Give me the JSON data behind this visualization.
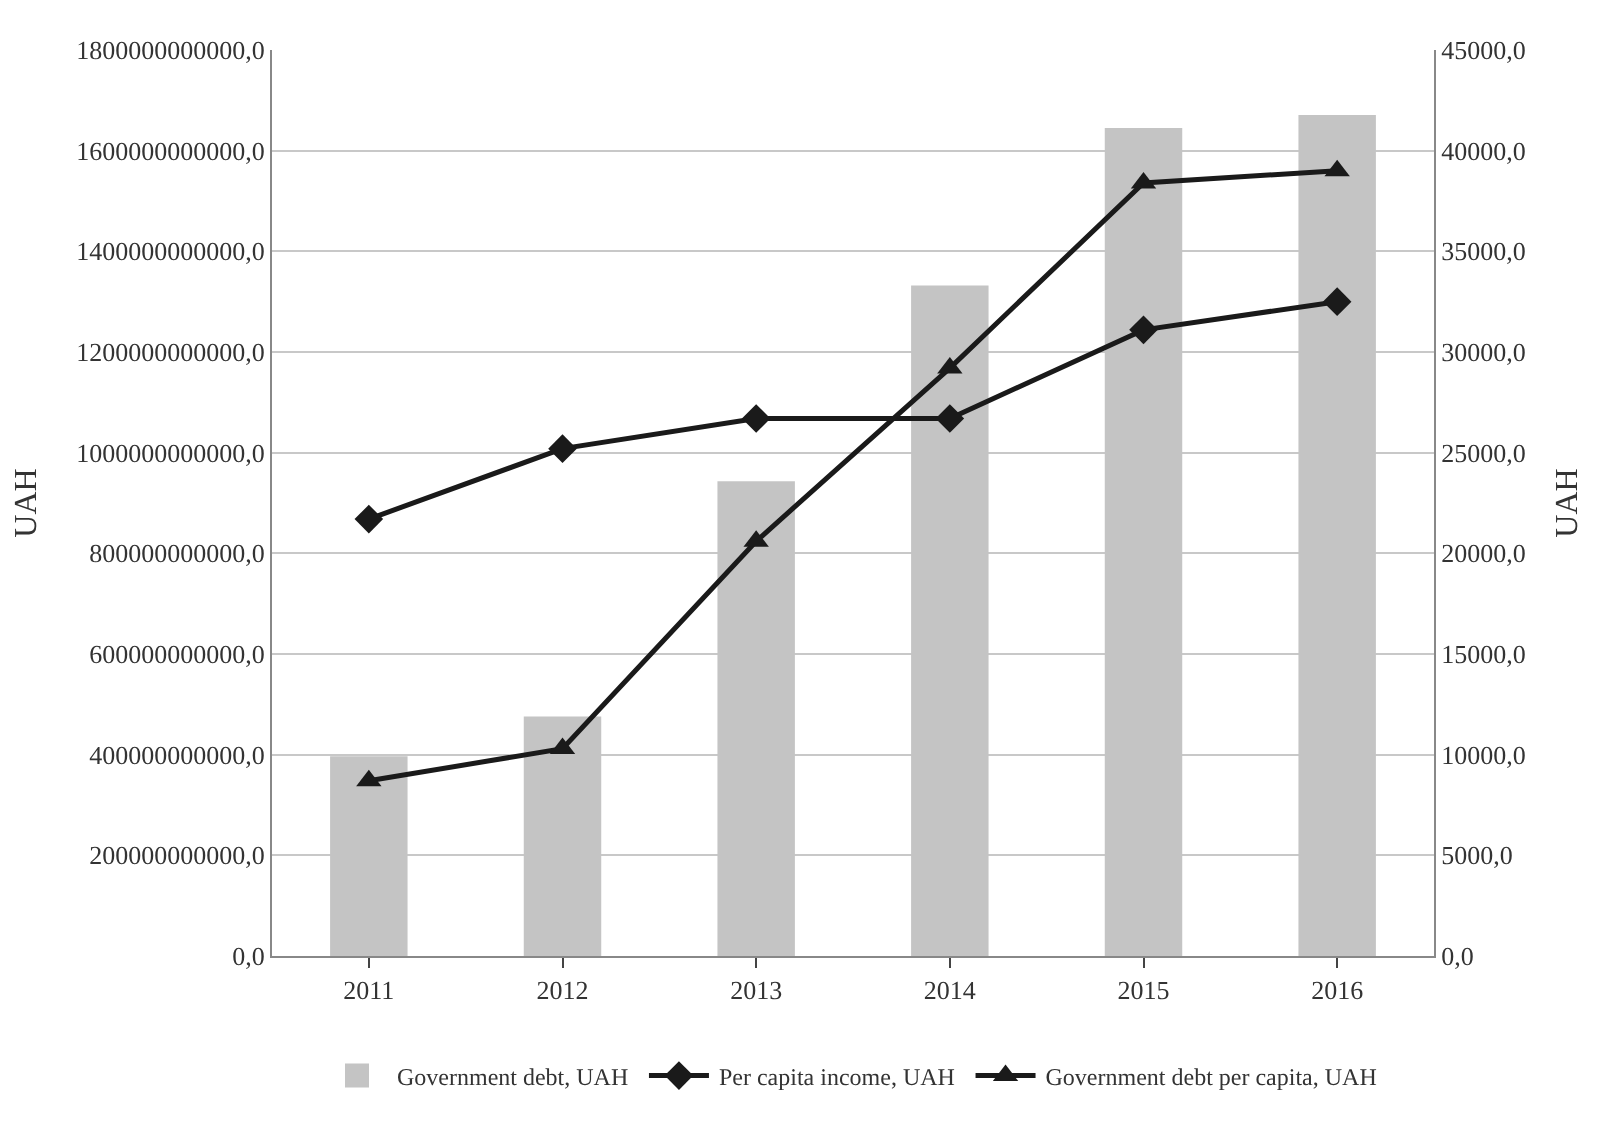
{
  "chart_data": {
    "type": "bar",
    "categories": [
      "2011",
      "2012",
      "2013",
      "2014",
      "2015",
      "2016"
    ],
    "ylabel": "UAH",
    "y2label": "UAH",
    "series": [
      {
        "name": "Government debt, UAH",
        "color": "#c4c4c4",
        "values": [
          397000000000,
          476000000000,
          943000000000,
          1332000000000,
          1645000000000,
          1671000000000
        ]
      },
      {
        "name": "Per capita income, UAH",
        "type": "line",
        "axis": "y2",
        "marker": "diamond",
        "color": "#1a1a1a",
        "values": [
          21700,
          25200,
          26700,
          26700,
          31100,
          32500
        ]
      },
      {
        "name": "Government debt per capita, UAH",
        "type": "line",
        "axis": "y2",
        "marker": "triangle",
        "color": "#1a1a1a",
        "values": [
          8700,
          10300,
          20600,
          29200,
          38400,
          39000
        ]
      }
    ],
    "ylim": [
      0,
      1800000000000
    ],
    "yticks": [
      {
        "value": 0,
        "label": "0,0"
      },
      {
        "value": 200000000000,
        "label": "200000000000,0"
      },
      {
        "value": 400000000000,
        "label": "400000000000,0"
      },
      {
        "value": 600000000000,
        "label": "600000000000,0"
      },
      {
        "value": 800000000000,
        "label": "800000000000,0"
      },
      {
        "value": 1000000000000,
        "label": "1000000000000,0"
      },
      {
        "value": 1200000000000,
        "label": "1200000000000,0"
      },
      {
        "value": 1400000000000,
        "label": "1400000000000,0"
      },
      {
        "value": 1600000000000,
        "label": "1600000000000,0"
      },
      {
        "value": 1800000000000,
        "label": "1800000000000,0"
      }
    ],
    "y2lim": [
      0,
      45000
    ],
    "y2ticks": [
      {
        "value": 0,
        "label": "0,0"
      },
      {
        "value": 5000,
        "label": "5000,0"
      },
      {
        "value": 10000,
        "label": "10000,0"
      },
      {
        "value": 15000,
        "label": "15000,0"
      },
      {
        "value": 20000,
        "label": "20000,0"
      },
      {
        "value": 25000,
        "label": "25000,0"
      },
      {
        "value": 30000,
        "label": "30000,0"
      },
      {
        "value": 35000,
        "label": "35000,0"
      },
      {
        "value": 40000,
        "label": "40000,0"
      },
      {
        "value": 45000,
        "label": "45000,0"
      }
    ],
    "grid": "y",
    "legend": "bottom"
  }
}
